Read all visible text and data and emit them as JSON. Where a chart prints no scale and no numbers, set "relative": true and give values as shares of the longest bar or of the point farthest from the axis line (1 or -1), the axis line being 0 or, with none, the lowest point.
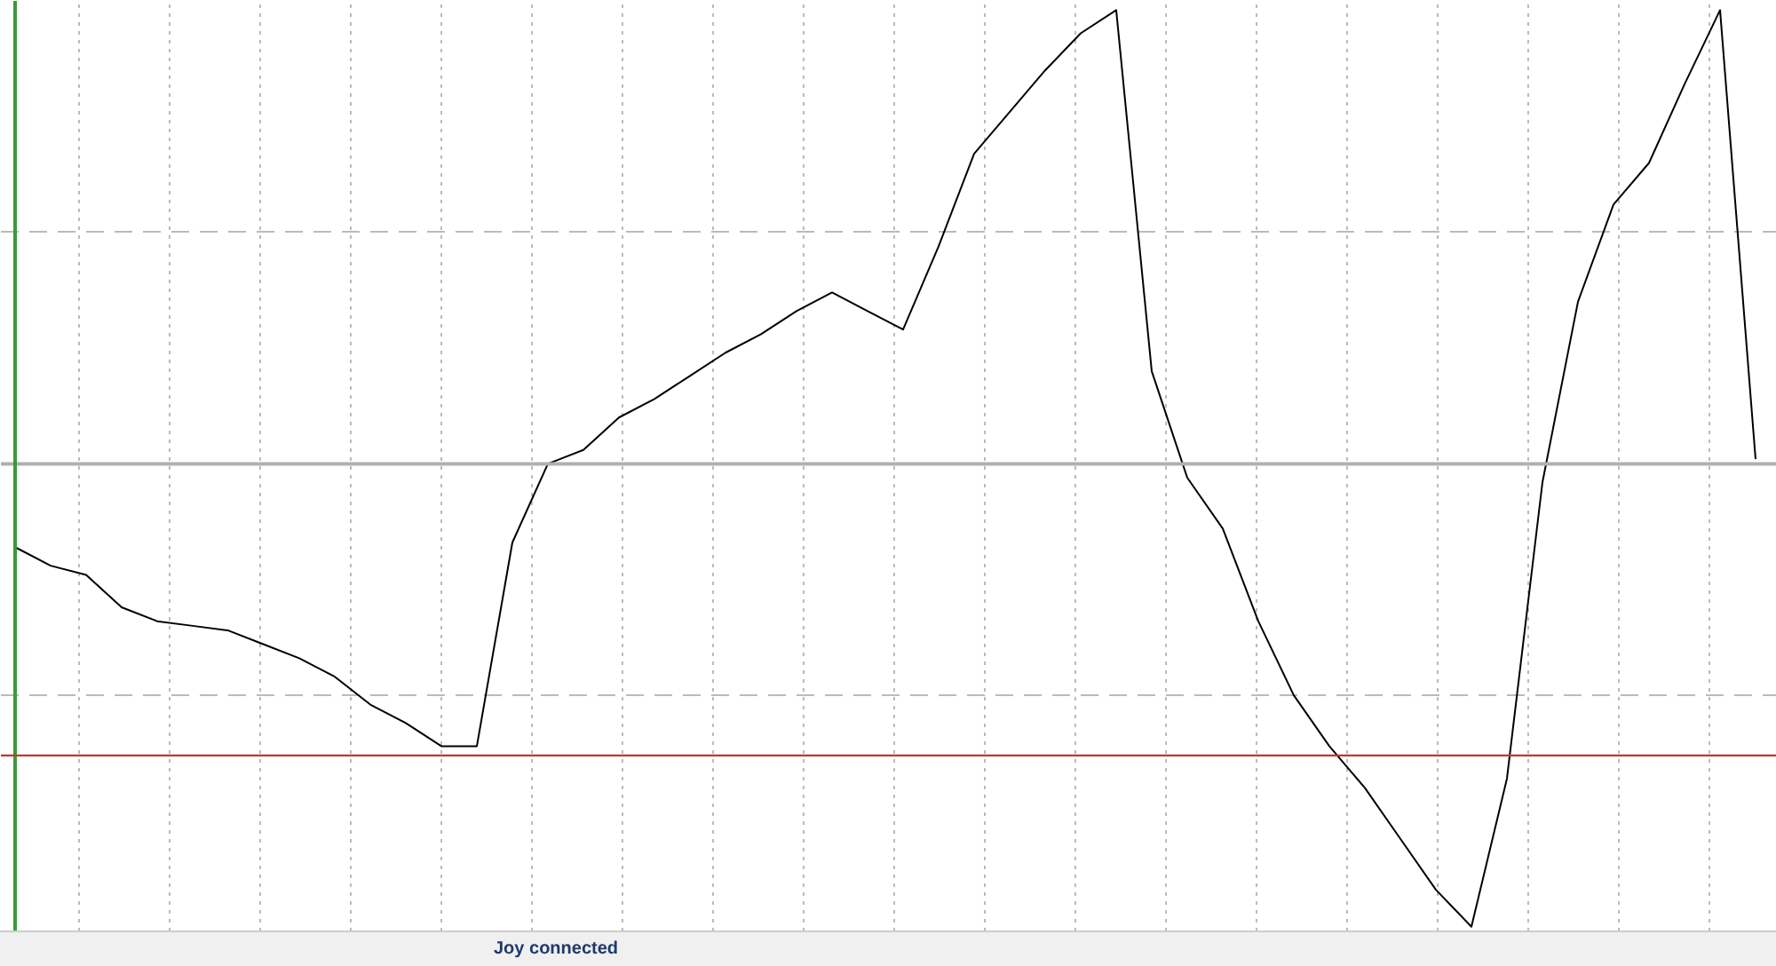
{
  "chart_data": {
    "type": "line",
    "relative": true,
    "categories": [
      null,
      null,
      null,
      null,
      null,
      null,
      null,
      null,
      null,
      null,
      null,
      null,
      null,
      null,
      null,
      null,
      null,
      null,
      null,
      null,
      null,
      null,
      null,
      null,
      null,
      null,
      null,
      null,
      null,
      null,
      null,
      null,
      null,
      null,
      null,
      null,
      null,
      null,
      null,
      null,
      null,
      null,
      null,
      null,
      null,
      null,
      null,
      null,
      null,
      null
    ],
    "series": [
      {
        "color": "#000000",
        "values": [
          -0.18,
          -0.22,
          -0.24,
          -0.31,
          -0.34,
          -0.35,
          -0.36,
          -0.39,
          -0.42,
          -0.46,
          -0.52,
          -0.56,
          -0.61,
          -0.61,
          -0.17,
          0,
          0.03,
          0.1,
          0.14,
          0.19,
          0.24,
          0.28,
          0.33,
          0.37,
          0.33,
          0.29,
          0.47,
          0.67,
          0.76,
          0.85,
          0.93,
          0.98,
          0.2,
          -0.03,
          -0.14,
          -0.34,
          -0.5,
          -0.61,
          -0.7,
          -0.81,
          -0.92,
          -1.0,
          -0.68,
          -0.04,
          0.35,
          0.56,
          0.65,
          0.82,
          0.98,
          0.01
        ]
      }
    ],
    "ref_lines": [
      {
        "axis": "y",
        "value": -0.63,
        "color": "#c0392b"
      }
    ],
    "grid": true,
    "marker": "none",
    "line_style": "solid",
    "annotations": [
      "Joy connected"
    ]
  }
}
